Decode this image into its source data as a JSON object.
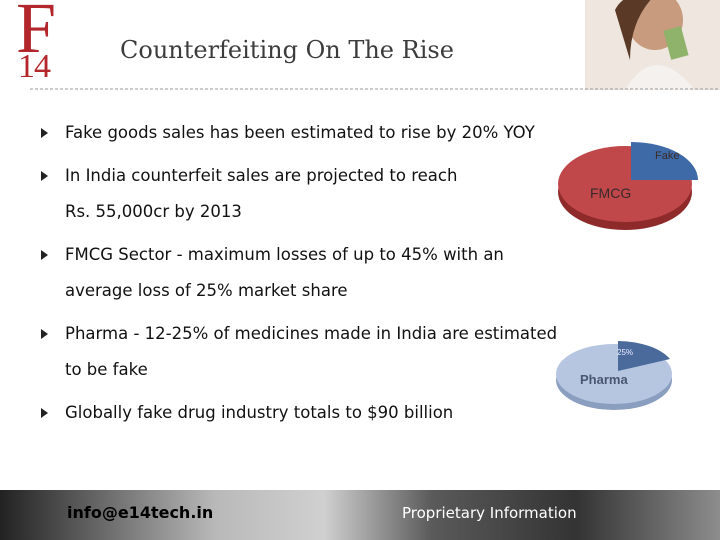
{
  "header": {
    "logo_letter": "F",
    "logo_number": "14",
    "title": "Counterfeiting On The Rise"
  },
  "bullets": [
    [
      "Fake goods sales has been estimated to rise by 20% YOY"
    ],
    [
      "In India counterfeit sales are projected to reach",
      "Rs. 55,000cr by 2013"
    ],
    [
      "FMCG Sector - maximum losses of up to 45% with an",
      "average loss of 25% market share"
    ],
    [
      "Pharma - 12-25% of medicines made in India are estimated",
      "to be fake"
    ],
    [
      "Globally fake drug industry totals to $90 billion"
    ]
  ],
  "pies": [
    {
      "slice_label": "Fake",
      "main_label": "FMCG"
    },
    {
      "slice_label": "25%",
      "main_label": "Pharma"
    }
  ],
  "footer": {
    "email": "info@e14tech.in",
    "note": "Proprietary Information"
  }
}
